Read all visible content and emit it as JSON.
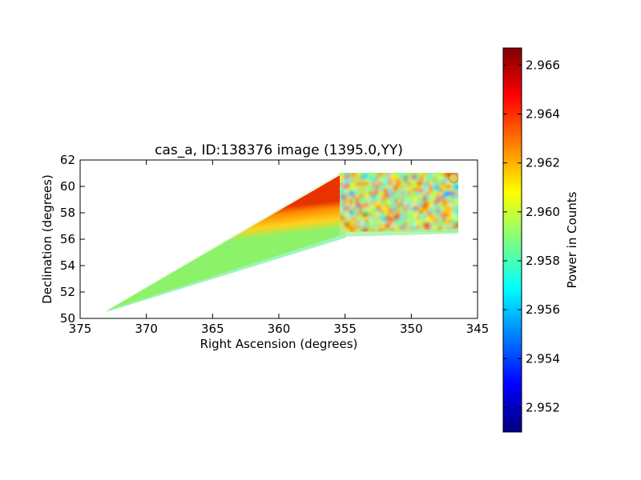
{
  "chart_data": {
    "type": "heatmap",
    "title": "cas_a, ID:138376 image (1395.0,YY)",
    "xlabel": "Right Ascension (degrees)",
    "ylabel": "Declination (degrees)",
    "x_axis_reversed": true,
    "xlim": [
      375,
      345
    ],
    "ylim": [
      50,
      62
    ],
    "x_ticks": [
      "375",
      "370",
      "365",
      "360",
      "355",
      "350",
      "345"
    ],
    "y_ticks": [
      "50",
      "52",
      "54",
      "56",
      "58",
      "60",
      "62"
    ],
    "colorbar": {
      "label": "Power in Counts",
      "colormap": "jet",
      "range": [
        2.951,
        2.9667
      ],
      "ticks": [
        "2.952",
        "2.954",
        "2.956",
        "2.958",
        "2.960",
        "2.962",
        "2.964",
        "2.966"
      ]
    },
    "image_extent": {
      "tip": {
        "ra": 373.0,
        "dec": 50.5
      },
      "upper_inner_corner": {
        "ra": 355.2,
        "dec": 60.8
      },
      "upper_outer_corner": {
        "ra": 346.6,
        "dec": 60.8
      },
      "lower_outer_corner": {
        "ra": 346.8,
        "dec": 56.6
      },
      "lower_edge_break": {
        "ra": 355.2,
        "dec": 54.8
      }
    },
    "regions": [
      {
        "region": "wedge upper edge",
        "approx_value": 2.9645
      },
      {
        "region": "wedge center",
        "approx_value": 2.962
      },
      {
        "region": "wedge lower edge",
        "approx_value": 2.9585
      },
      {
        "region": "noisy rectangle RA 355-347, Dec 56.8-61",
        "approx_value_range": [
          2.955,
          2.965
        ]
      }
    ]
  },
  "colors": {
    "jet_stops": [
      "#00007f",
      "#0000ff",
      "#007fff",
      "#00ffff",
      "#7fff7f",
      "#ffff00",
      "#ff7f00",
      "#ff0000",
      "#7f0000"
    ]
  }
}
